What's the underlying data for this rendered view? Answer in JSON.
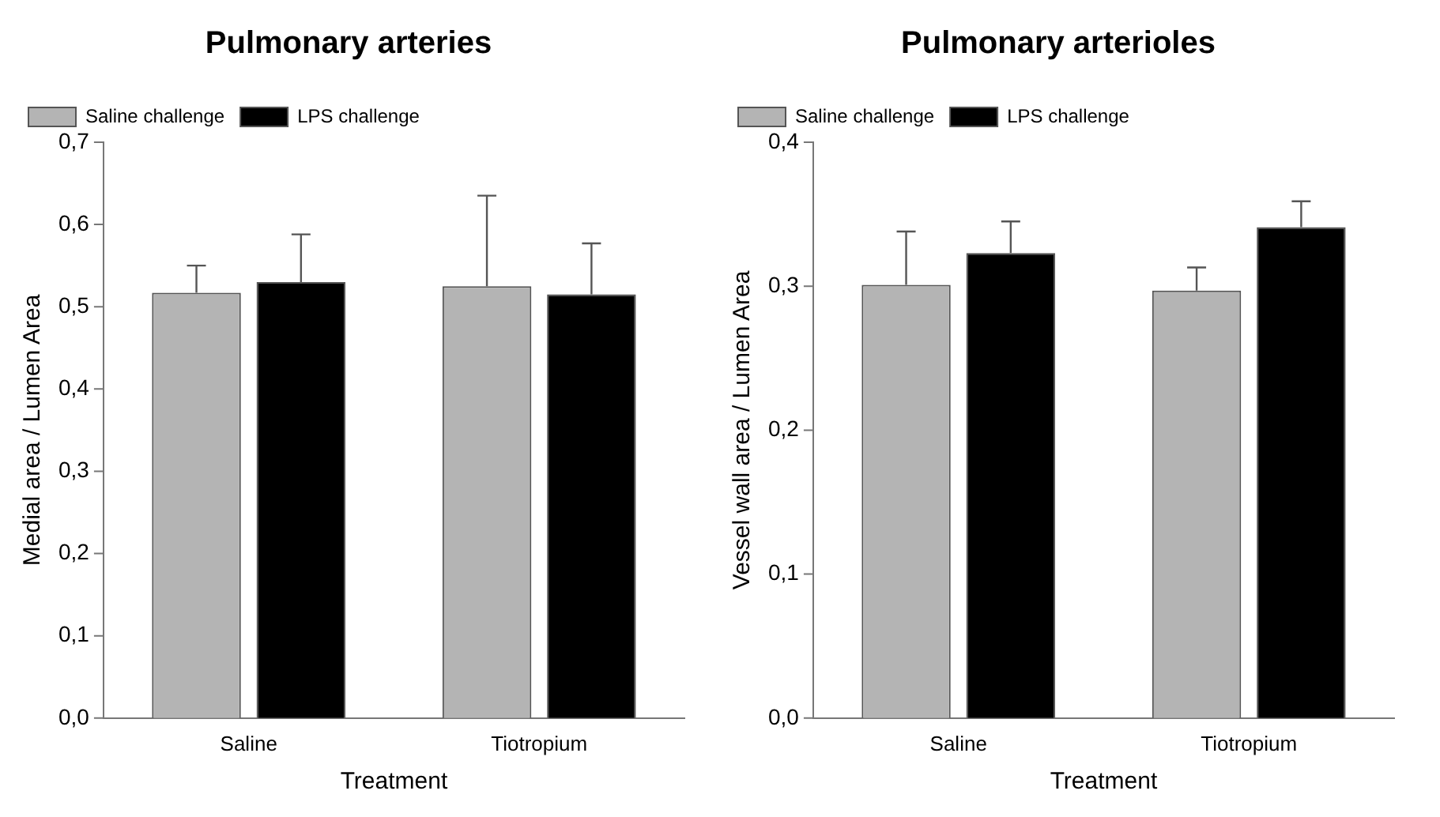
{
  "chart_data": [
    {
      "type": "bar",
      "title": "Pulmonary arteries",
      "xlabel": "Treatment",
      "ylabel": "Medial area / Lumen Area",
      "categories": [
        "Saline",
        "Tiotropium"
      ],
      "series": [
        {
          "name": "Saline challenge",
          "color": "#b4b4b4",
          "values": [
            0.517,
            0.525
          ],
          "errors": [
            [
              0.517,
              0.55
            ],
            [
              0.525,
              0.635
            ]
          ]
        },
        {
          "name": "LPS challenge",
          "color": "#000000",
          "values": [
            0.53,
            0.515
          ],
          "errors": [
            [
              0.53,
              0.588
            ],
            [
              0.515,
              0.577
            ]
          ]
        }
      ],
      "ylim": [
        0,
        0.7
      ],
      "yticks": [
        {
          "value": 0,
          "label": "0,0"
        },
        {
          "value": 0.1,
          "label": "0,1"
        },
        {
          "value": 0.2,
          "label": "0,2"
        },
        {
          "value": 0.3,
          "label": "0,3"
        },
        {
          "value": 0.4,
          "label": "0,4"
        },
        {
          "value": 0.5,
          "label": "0,5"
        },
        {
          "value": 0.6,
          "label": "0,6"
        },
        {
          "value": 0.7,
          "label": "0,7"
        }
      ],
      "legend": "top left"
    },
    {
      "type": "bar",
      "title": "Pulmonary arterioles",
      "xlabel": "Treatment",
      "ylabel": "Vessel wall area / Lumen Area",
      "categories": [
        "Saline",
        "Tiotropium"
      ],
      "series": [
        {
          "name": "Saline challenge",
          "color": "#b4b4b4",
          "values": [
            0.301,
            0.297
          ],
          "errors": [
            [
              0.301,
              0.338
            ],
            [
              0.297,
              0.313
            ]
          ]
        },
        {
          "name": "LPS challenge",
          "color": "#000000",
          "values": [
            0.323,
            0.341
          ],
          "errors": [
            [
              0.323,
              0.345
            ],
            [
              0.341,
              0.359
            ]
          ]
        }
      ],
      "ylim": [
        0,
        0.4
      ],
      "yticks": [
        {
          "value": 0,
          "label": "0,0"
        },
        {
          "value": 0.1,
          "label": "0,1"
        },
        {
          "value": 0.2,
          "label": "0,2"
        },
        {
          "value": 0.3,
          "label": "0,3"
        },
        {
          "value": 0.4,
          "label": "0,4"
        }
      ],
      "legend": "top left"
    }
  ]
}
